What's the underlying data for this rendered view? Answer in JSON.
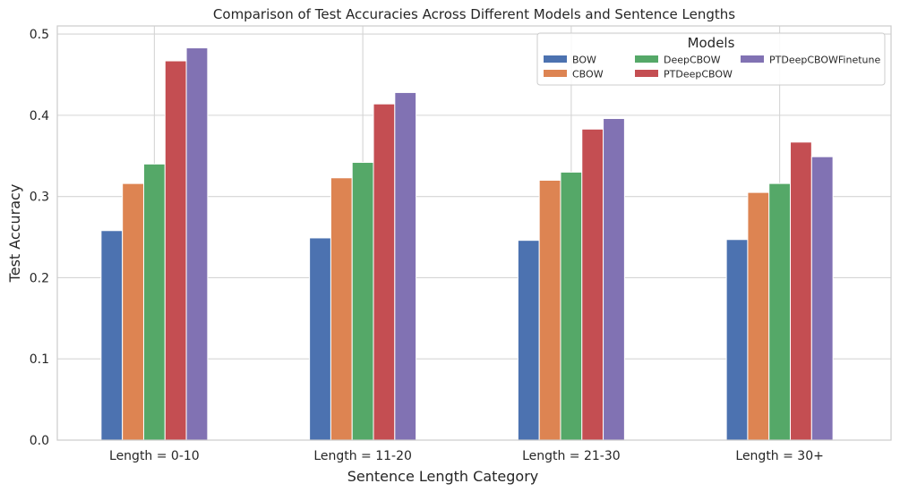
{
  "chart_data": {
    "type": "bar",
    "title": "Comparison of Test Accuracies Across Different Models and Sentence Lengths",
    "xlabel": "Sentence Length Category",
    "ylabel": "Test Accuracy",
    "categories": [
      "Length = 0-10",
      "Length = 11-20",
      "Length = 21-30",
      "Length = 30+"
    ],
    "ylim": [
      0,
      0.51
    ],
    "yticks": [
      "0.0",
      "0.1",
      "0.2",
      "0.3",
      "0.4",
      "0.5"
    ],
    "grid": true,
    "legend": {
      "title": "Models",
      "placement": "top-right",
      "columns": 3
    },
    "series": [
      {
        "name": "BOW",
        "color": "#4c72b0",
        "values": [
          0.258,
          0.249,
          0.246,
          0.247
        ]
      },
      {
        "name": "CBOW",
        "color": "#dd8452",
        "values": [
          0.316,
          0.323,
          0.32,
          0.305
        ]
      },
      {
        "name": "DeepCBOW",
        "color": "#55a868",
        "values": [
          0.34,
          0.342,
          0.33,
          0.316
        ]
      },
      {
        "name": "PTDeepCBOW",
        "color": "#c44e52",
        "values": [
          0.467,
          0.414,
          0.383,
          0.367
        ]
      },
      {
        "name": "PTDeepCBOWFinetune",
        "color": "#8172b3",
        "values": [
          0.483,
          0.428,
          0.396,
          0.349
        ]
      }
    ]
  }
}
